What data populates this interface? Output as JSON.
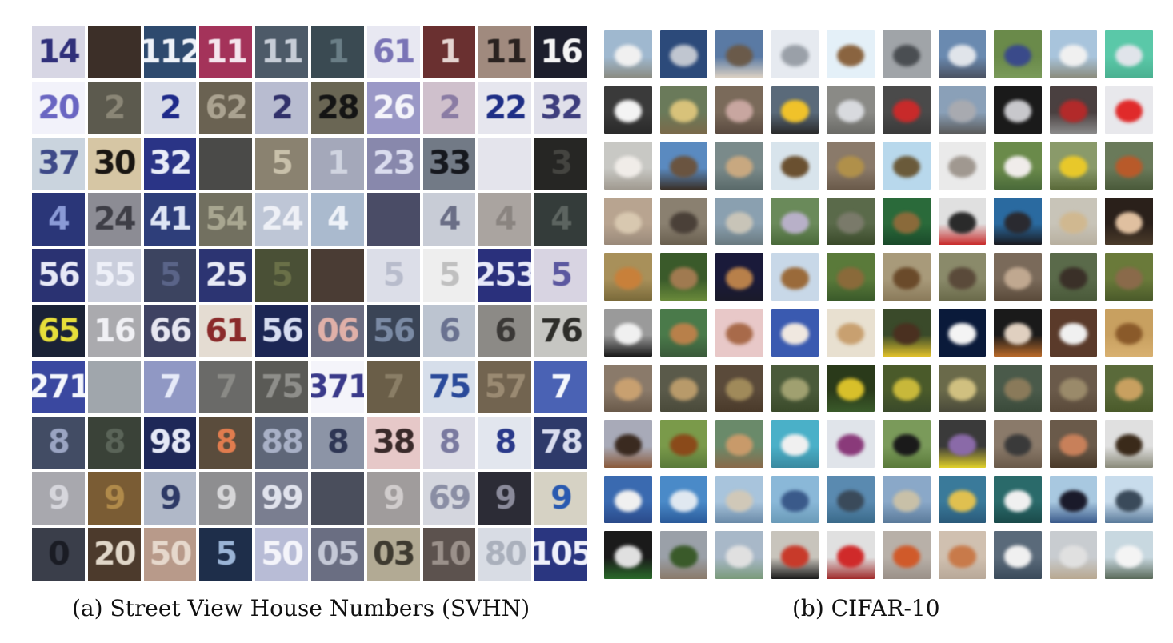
{
  "captions": {
    "a": "(a) Street View House Numbers (SVHN)",
    "b": "(b) CIFAR-10"
  },
  "svhn_tiles": [
    {
      "text": "14",
      "bg": "#d7d6e4",
      "fg": "#30307a"
    },
    {
      "text": "",
      "bg": "#3c2f28",
      "fg": "#5a4a40"
    },
    {
      "text": "112",
      "bg": "#2e4a6e",
      "fg": "#eef2f8"
    },
    {
      "text": "11",
      "bg": "#a4335a",
      "fg": "#f4e6ee"
    },
    {
      "text": "11",
      "bg": "#4d5a68",
      "fg": "#c6ccd6"
    },
    {
      "text": "1",
      "bg": "#3a4a52",
      "fg": "#6a7e86"
    },
    {
      "text": "61",
      "bg": "#e8e8f2",
      "fg": "#7a74b6"
    },
    {
      "text": "1",
      "bg": "#6a3030",
      "fg": "#e4d4d0"
    },
    {
      "text": "11",
      "bg": "#a08a7e",
      "fg": "#2a2220"
    },
    {
      "text": "16",
      "bg": "#1c1e2c",
      "fg": "#f4f4f4"
    },
    {
      "text": "20",
      "bg": "#f2f2fa",
      "fg": "#6a66c2"
    },
    {
      "text": "2",
      "bg": "#5c5a4e",
      "fg": "#8a8676"
    },
    {
      "text": "2",
      "bg": "#d8dce8",
      "fg": "#1e2a8a"
    },
    {
      "text": "62",
      "bg": "#6a6252",
      "fg": "#aaa290"
    },
    {
      "text": "2",
      "bg": "#b8bcd0",
      "fg": "#30306a"
    },
    {
      "text": "28",
      "bg": "#6a6654",
      "fg": "#141414"
    },
    {
      "text": "26",
      "bg": "#9a98c6",
      "fg": "#f4f4fa"
    },
    {
      "text": "2",
      "bg": "#cfc0cc",
      "fg": "#8a7ca4"
    },
    {
      "text": "22",
      "bg": "#e6e6ee",
      "fg": "#1e2e86"
    },
    {
      "text": "32",
      "bg": "#e0e0ea",
      "fg": "#3e3e7e"
    },
    {
      "text": "37",
      "bg": "#cad4de",
      "fg": "#3e4a88"
    },
    {
      "text": "30",
      "bg": "#d6c6a4",
      "fg": "#1a1612"
    },
    {
      "text": "32",
      "bg": "#2a3486",
      "fg": "#e8ecf8"
    },
    {
      "text": "",
      "bg": "#4a4a48",
      "fg": "#6e6c68"
    },
    {
      "text": "5",
      "bg": "#8a8270",
      "fg": "#c8c0aa"
    },
    {
      "text": "1",
      "bg": "#a4a8ba",
      "fg": "#d0d4e0"
    },
    {
      "text": "23",
      "bg": "#8888ac",
      "fg": "#dadcee"
    },
    {
      "text": "33",
      "bg": "#727a86",
      "fg": "#16181e"
    },
    {
      "text": "",
      "bg": "#e4e4ec",
      "fg": "#f4f4f8"
    },
    {
      "text": "3",
      "bg": "#262624",
      "fg": "#444440"
    },
    {
      "text": "4",
      "bg": "#2a3678",
      "fg": "#8a9ad6"
    },
    {
      "text": "24",
      "bg": "#8c8c94",
      "fg": "#3e3e46"
    },
    {
      "text": "41",
      "bg": "#2e3e7a",
      "fg": "#dde4f4"
    },
    {
      "text": "54",
      "bg": "#727060",
      "fg": "#a8a690"
    },
    {
      "text": "24",
      "bg": "#bec6d6",
      "fg": "#eef0f6"
    },
    {
      "text": "4",
      "bg": "#aabace",
      "fg": "#eef2f8"
    },
    {
      "text": "",
      "bg": "#4a4c66",
      "fg": "#6a6c84"
    },
    {
      "text": "4",
      "bg": "#c8ccd6",
      "fg": "#6a6e86"
    },
    {
      "text": "4",
      "bg": "#aaa4a0",
      "fg": "#8a8480"
    },
    {
      "text": "4",
      "bg": "#343c3a",
      "fg": "#5c6460"
    },
    {
      "text": "56",
      "bg": "#2a3272",
      "fg": "#e6e8f6"
    },
    {
      "text": "55",
      "bg": "#cacedc",
      "fg": "#eef0f8"
    },
    {
      "text": "5",
      "bg": "#3c4460",
      "fg": "#5a6488"
    },
    {
      "text": "25",
      "bg": "#2c3472",
      "fg": "#e8eaf6"
    },
    {
      "text": "5",
      "bg": "#4a5036",
      "fg": "#6a7048"
    },
    {
      "text": "",
      "bg": "#4a3c34",
      "fg": "#6a5a50"
    },
    {
      "text": "5",
      "bg": "#dcdee8",
      "fg": "#b8bccc"
    },
    {
      "text": "5",
      "bg": "#eeeeee",
      "fg": "#c0c0c0"
    },
    {
      "text": "253",
      "bg": "#2a307c",
      "fg": "#e6e8f8"
    },
    {
      "text": "5",
      "bg": "#d8d4e2",
      "fg": "#5c58a0"
    },
    {
      "text": "65",
      "bg": "#1a2236",
      "fg": "#e6de3a"
    },
    {
      "text": "16",
      "bg": "#aaaaae",
      "fg": "#f0f0f4"
    },
    {
      "text": "66",
      "bg": "#3e4262",
      "fg": "#e6e6f0"
    },
    {
      "text": "61",
      "bg": "#e4dcd2",
      "fg": "#8a2a2a"
    },
    {
      "text": "56",
      "bg": "#1c2654",
      "fg": "#d6dcf0"
    },
    {
      "text": "06",
      "bg": "#6a6c80",
      "fg": "#e0b0a8"
    },
    {
      "text": "56",
      "bg": "#3a4456",
      "fg": "#7a8aa4"
    },
    {
      "text": "6",
      "bg": "#bcc4d0",
      "fg": "#6a7290"
    },
    {
      "text": "6",
      "bg": "#8c8a86",
      "fg": "#3a3836"
    },
    {
      "text": "76",
      "bg": "#c6c6c2",
      "fg": "#2e2e2a"
    },
    {
      "text": "271",
      "bg": "#3a48a0",
      "fg": "#f4f6fc"
    },
    {
      "text": "",
      "bg": "#a0a6ac",
      "fg": "#c0c6cc"
    },
    {
      "text": "7",
      "bg": "#9098c4",
      "fg": "#e6eaf8"
    },
    {
      "text": "7",
      "bg": "#6a6a68",
      "fg": "#8a8a86"
    },
    {
      "text": "75",
      "bg": "#5a5a56",
      "fg": "#8e8e8a"
    },
    {
      "text": "371",
      "bg": "#f4f4fa",
      "fg": "#3a3a8a"
    },
    {
      "text": "7",
      "bg": "#6a5e48",
      "fg": "#8a7e66"
    },
    {
      "text": "75",
      "bg": "#d6deea",
      "fg": "#2a4a9a"
    },
    {
      "text": "57",
      "bg": "#726450",
      "fg": "#9a8a72"
    },
    {
      "text": "7",
      "bg": "#4a62b4",
      "fg": "#f4f6fc"
    },
    {
      "text": "8",
      "bg": "#424c64",
      "fg": "#9aa4c2"
    },
    {
      "text": "8",
      "bg": "#3a4238",
      "fg": "#5a6458"
    },
    {
      "text": "98",
      "bg": "#1e2858",
      "fg": "#e4e8f6"
    },
    {
      "text": "8",
      "bg": "#5a4c3c",
      "fg": "#e07c4e"
    },
    {
      "text": "88",
      "bg": "#5e6678",
      "fg": "#a8b0c6"
    },
    {
      "text": "8",
      "bg": "#8c94a6",
      "fg": "#2e3654"
    },
    {
      "text": "38",
      "bg": "#e6c8c8",
      "fg": "#3a2a2a"
    },
    {
      "text": "8",
      "bg": "#dcdce6",
      "fg": "#7a7aa0"
    },
    {
      "text": "8",
      "bg": "#e2e6ee",
      "fg": "#2a3a8a"
    },
    {
      "text": "78",
      "bg": "#2e3a6a",
      "fg": "#d8dcee"
    },
    {
      "text": "9",
      "bg": "#a8a8ae",
      "fg": "#d6d6dc"
    },
    {
      "text": "9",
      "bg": "#7a5c34",
      "fg": "#b08a4a"
    },
    {
      "text": "9",
      "bg": "#b0b8c8",
      "fg": "#2e3a66"
    },
    {
      "text": "9",
      "bg": "#8e8e90",
      "fg": "#d6d6d8"
    },
    {
      "text": "99",
      "bg": "#7a7e90",
      "fg": "#e0e2ec"
    },
    {
      "text": "",
      "bg": "#4a4e5c",
      "fg": "#6a6e7c"
    },
    {
      "text": "9",
      "bg": "#a09c9c",
      "fg": "#d0cccc"
    },
    {
      "text": "69",
      "bg": "#d4d6de",
      "fg": "#8a8ea4"
    },
    {
      "text": "9",
      "bg": "#2c2c36",
      "fg": "#8a8a9a"
    },
    {
      "text": "9",
      "bg": "#d6d2c4",
      "fg": "#2a5ab0"
    },
    {
      "text": "0",
      "bg": "#3a3e4a",
      "fg": "#1a1c24"
    },
    {
      "text": "20",
      "bg": "#4c3a2c",
      "fg": "#e0d6c8"
    },
    {
      "text": "50",
      "bg": "#b89a8a",
      "fg": "#e6d8cc"
    },
    {
      "text": "5",
      "bg": "#1e2e4a",
      "fg": "#9ab4d6"
    },
    {
      "text": "50",
      "bg": "#b8bcd6",
      "fg": "#f4f4fa"
    },
    {
      "text": "05",
      "bg": "#6a6e82",
      "fg": "#c4c8d6"
    },
    {
      "text": "03",
      "bg": "#b2aa94",
      "fg": "#3e3a30"
    },
    {
      "text": "10",
      "bg": "#5c524e",
      "fg": "#9a908a"
    },
    {
      "text": "80",
      "bg": "#d8dce4",
      "fg": "#aab0bc"
    },
    {
      "text": "105",
      "bg": "#2a3680",
      "fg": "#eef0fa"
    }
  ],
  "cifar_tiles": [
    {
      "class": "airplane",
      "bg": "#9fb8cf",
      "fg": "#f0f0f0",
      "g": "#8a8a80"
    },
    {
      "class": "airplane",
      "bg": "#2c4a7a",
      "fg": "#c0c6d0",
      "g": "#2c4a7a"
    },
    {
      "class": "airplane",
      "bg": "#5a7aa4",
      "fg": "#6a5a4a",
      "g": "#e0d4c4"
    },
    {
      "class": "airplane",
      "bg": "#e6eaf0",
      "fg": "#9aa0a8",
      "g": "#e6eaf0"
    },
    {
      "class": "airplane",
      "bg": "#e4f0f8",
      "fg": "#8a6440",
      "g": "#e4f0f8"
    },
    {
      "class": "airplane",
      "bg": "#a0a4a8",
      "fg": "#4a4e52",
      "g": "#a0a4a8"
    },
    {
      "class": "airplane",
      "bg": "#6a8ab0",
      "fg": "#e0e4ea",
      "g": "#4a5060"
    },
    {
      "class": "airplane",
      "bg": "#6a8a4a",
      "fg": "#3a4a8a",
      "g": "#7a9a5a"
    },
    {
      "class": "airplane",
      "bg": "#a8c4dc",
      "fg": "#f0f0f0",
      "g": "#8a8a7a"
    },
    {
      "class": "airplane",
      "bg": "#5ac8a8",
      "fg": "#e0e4ea",
      "g": "#4ab090"
    },
    {
      "class": "automobile",
      "bg": "#3a3a3a",
      "fg": "#f4f4f4",
      "g": "#2a2a2a"
    },
    {
      "class": "automobile",
      "bg": "#6a7a5a",
      "fg": "#d8c27a",
      "g": "#7a6a4a"
    },
    {
      "class": "automobile",
      "bg": "#7a6a5a",
      "fg": "#c8a6a0",
      "g": "#5a4a40"
    },
    {
      "class": "automobile",
      "bg": "#5a6a7a",
      "fg": "#f0c22a",
      "g": "#2a2a2a"
    },
    {
      "class": "automobile",
      "bg": "#8a8a86",
      "fg": "#d8dade",
      "g": "#6a6a66"
    },
    {
      "class": "automobile",
      "bg": "#4a4a4a",
      "fg": "#c82a2a",
      "g": "#3a3a3a"
    },
    {
      "class": "automobile",
      "bg": "#8aa0b8",
      "fg": "#a8aab0",
      "g": "#5a5a5a"
    },
    {
      "class": "automobile",
      "bg": "#1a1a1a",
      "fg": "#c8c8cc",
      "g": "#1a1a1a"
    },
    {
      "class": "automobile",
      "bg": "#4a4040",
      "fg": "#b22a2a",
      "g": "#8a8a8a"
    },
    {
      "class": "automobile",
      "bg": "#e8e8ec",
      "fg": "#e02a2a",
      "g": "#e8e8ec"
    },
    {
      "class": "bird",
      "bg": "#c8c8c4",
      "fg": "#f0ece8",
      "g": "#a09a90"
    },
    {
      "class": "bird",
      "bg": "#5a8ac0",
      "fg": "#6a5440",
      "g": "#3a3028"
    },
    {
      "class": "bird",
      "bg": "#7a8a8a",
      "fg": "#c8a880",
      "g": "#5a6a6a"
    },
    {
      "class": "bird",
      "bg": "#d8e4ec",
      "fg": "#6a5030",
      "g": "#d8e4ec"
    },
    {
      "class": "bird",
      "bg": "#8a7a6a",
      "fg": "#b0904a",
      "g": "#6a5a4a"
    },
    {
      "class": "bird",
      "bg": "#b8d8ec",
      "fg": "#6a5a3a",
      "g": "#b8d8ec"
    },
    {
      "class": "bird",
      "bg": "#eaeaea",
      "fg": "#a09890",
      "g": "#eaeaea"
    },
    {
      "class": "bird",
      "bg": "#6a8a4a",
      "fg": "#f0ecea",
      "g": "#4a6a3a"
    },
    {
      "class": "bird",
      "bg": "#8a9a6a",
      "fg": "#e8c82a",
      "g": "#5a6a3a"
    },
    {
      "class": "bird",
      "bg": "#6a7a5a",
      "fg": "#b85a2a",
      "g": "#4a5a3a"
    },
    {
      "class": "cat",
      "bg": "#b8a490",
      "fg": "#d8c8b0",
      "g": "#9a8a7a"
    },
    {
      "class": "cat",
      "bg": "#8a8070",
      "fg": "#4a4038",
      "g": "#6a6050"
    },
    {
      "class": "cat",
      "bg": "#8aa0b0",
      "fg": "#c8c4b8",
      "g": "#6a7a80"
    },
    {
      "class": "cat",
      "bg": "#6a8a5a",
      "fg": "#b8b0c8",
      "g": "#4a6a3a"
    },
    {
      "class": "cat",
      "bg": "#5a6a4a",
      "fg": "#7a7a6a",
      "g": "#3a4a2a"
    },
    {
      "class": "cat",
      "bg": "#2a6a3a",
      "fg": "#8a6a3a",
      "g": "#1a4a2a"
    },
    {
      "class": "cat",
      "bg": "#e0e0e0",
      "fg": "#2a2a2a",
      "g": "#c82a2a"
    },
    {
      "class": "cat",
      "bg": "#2a6aa0",
      "fg": "#2a2a30",
      "g": "#1a1a20"
    },
    {
      "class": "cat",
      "bg": "#c8c4b8",
      "fg": "#d0b890",
      "g": "#b8b0a0"
    },
    {
      "class": "cat",
      "bg": "#2a201a",
      "fg": "#e0c0a0",
      "g": "#4a3a2a"
    },
    {
      "class": "deer",
      "bg": "#a8905a",
      "fg": "#c8803a",
      "g": "#7a6a3a"
    },
    {
      "class": "deer",
      "bg": "#3a5a2a",
      "fg": "#a07a50",
      "g": "#6a8a3a"
    },
    {
      "class": "deer",
      "bg": "#1a1a3a",
      "fg": "#b8804a",
      "g": "#1a1a2a"
    },
    {
      "class": "deer",
      "bg": "#c8d8e8",
      "fg": "#9a6a3a",
      "g": "#c8d8e8"
    },
    {
      "class": "deer",
      "bg": "#5a7a3a",
      "fg": "#8a6a3a",
      "g": "#3a5a2a"
    },
    {
      "class": "deer",
      "bg": "#a89a7a",
      "fg": "#6a4a2a",
      "g": "#8a7a5a"
    },
    {
      "class": "deer",
      "bg": "#8a8a6a",
      "fg": "#5a4a3a",
      "g": "#6a6a4a"
    },
    {
      "class": "deer",
      "bg": "#7a6a5a",
      "fg": "#c0a890",
      "g": "#5a4a3a"
    },
    {
      "class": "deer",
      "bg": "#5a6a4a",
      "fg": "#3a3028",
      "g": "#4a5a3a"
    },
    {
      "class": "deer",
      "bg": "#6a7a3a",
      "fg": "#8a6a4a",
      "g": "#4a5a2a"
    },
    {
      "class": "dog",
      "bg": "#9a9a9a",
      "fg": "#f0f0f0",
      "g": "#1a1a1a"
    },
    {
      "class": "dog",
      "bg": "#4a7a4a",
      "fg": "#b8804a",
      "g": "#3a5a3a"
    },
    {
      "class": "dog",
      "bg": "#e8c8c8",
      "fg": "#a86a4a",
      "g": "#e8c8c8"
    },
    {
      "class": "dog",
      "bg": "#3a5ab0",
      "fg": "#f0e8e0",
      "g": "#3a5ab0"
    },
    {
      "class": "dog",
      "bg": "#e8e0d0",
      "fg": "#c8a070",
      "g": "#e8e0d0"
    },
    {
      "class": "dog",
      "bg": "#3a4a2a",
      "fg": "#4a3020",
      "g": "#e0c02a"
    },
    {
      "class": "dog",
      "bg": "#0a1a3a",
      "fg": "#f4f4f4",
      "g": "#0a1a3a"
    },
    {
      "class": "dog",
      "bg": "#1a1a1a",
      "fg": "#e0d0c0",
      "g": "#b86a2a"
    },
    {
      "class": "dog",
      "bg": "#5a3a2a",
      "fg": "#f0f0f0",
      "g": "#5a3a2a"
    },
    {
      "class": "dog",
      "bg": "#c8a060",
      "fg": "#8a5a2a",
      "g": "#d8b070"
    },
    {
      "class": "frog",
      "bg": "#8a7a6a",
      "fg": "#c8a070",
      "g": "#6a5a4a"
    },
    {
      "class": "frog",
      "bg": "#5a5a4a",
      "fg": "#b89a6a",
      "g": "#4a4a3a"
    },
    {
      "class": "frog",
      "bg": "#5a4a3a",
      "fg": "#a08a5a",
      "g": "#4a3a2a"
    },
    {
      "class": "frog",
      "bg": "#4a5a3a",
      "fg": "#a0a070",
      "g": "#3a4a2a"
    },
    {
      "class": "frog",
      "bg": "#2a3a1a",
      "fg": "#d8c02a",
      "g": "#3a5a2a"
    },
    {
      "class": "frog",
      "bg": "#4a5a2a",
      "fg": "#c8b83a",
      "g": "#3a4a2a"
    },
    {
      "class": "frog",
      "bg": "#6a6a4a",
      "fg": "#d0c080",
      "g": "#4a4a3a"
    },
    {
      "class": "frog",
      "bg": "#4a5a4a",
      "fg": "#8a7a5a",
      "g": "#3a4a3a"
    },
    {
      "class": "frog",
      "bg": "#6a5a4a",
      "fg": "#9a8a6a",
      "g": "#5a4a3a"
    },
    {
      "class": "frog",
      "bg": "#5a6a3a",
      "fg": "#c8a060",
      "g": "#4a5a2a"
    },
    {
      "class": "horse",
      "bg": "#a8aab8",
      "fg": "#3a2a20",
      "g": "#8a5a3a"
    },
    {
      "class": "horse",
      "bg": "#7a9a4a",
      "fg": "#8a4a1a",
      "g": "#5a7a3a"
    },
    {
      "class": "horse",
      "bg": "#6a8a6a",
      "fg": "#c89a6a",
      "g": "#8a6a4a"
    },
    {
      "class": "horse",
      "bg": "#4ab0c8",
      "fg": "#f0f0f0",
      "g": "#3a8aa0"
    },
    {
      "class": "horse",
      "bg": "#e0e4ea",
      "fg": "#8a3a7a",
      "g": "#e0e4ea"
    },
    {
      "class": "horse",
      "bg": "#7a9a5a",
      "fg": "#1a1a1a",
      "g": "#5a7a3a"
    },
    {
      "class": "horse",
      "bg": "#3a3a3a",
      "fg": "#8a6aa8",
      "g": "#e0d02a"
    },
    {
      "class": "horse",
      "bg": "#8a7a6a",
      "fg": "#3a3a3a",
      "g": "#6a5a4a"
    },
    {
      "class": "horse",
      "bg": "#6a5a4a",
      "fg": "#c8805a",
      "g": "#4a3a2a"
    },
    {
      "class": "horse",
      "bg": "#e0e0e0",
      "fg": "#3a2a1a",
      "g": "#8a8a7a"
    },
    {
      "class": "ship",
      "bg": "#3a6ab0",
      "fg": "#f0f0f0",
      "g": "#2a4a8a"
    },
    {
      "class": "ship",
      "bg": "#4a8ac8",
      "fg": "#e0e8f0",
      "g": "#2a5a9a"
    },
    {
      "class": "ship",
      "bg": "#a8c4dc",
      "fg": "#d0c8b8",
      "g": "#6a8aa8"
    },
    {
      "class": "ship",
      "bg": "#8ab8d8",
      "fg": "#3a5a8a",
      "g": "#6a9ab8"
    },
    {
      "class": "ship",
      "bg": "#5a8ab0",
      "fg": "#3a4a5a",
      "g": "#3a6a8a"
    },
    {
      "class": "ship",
      "bg": "#8aa8c8",
      "fg": "#c8c0a8",
      "g": "#5a7a9a"
    },
    {
      "class": "ship",
      "bg": "#3a7a9a",
      "fg": "#e0c050",
      "g": "#2a5a7a"
    },
    {
      "class": "ship",
      "bg": "#2a6a6a",
      "fg": "#f0f0f0",
      "g": "#1a4a4a"
    },
    {
      "class": "ship",
      "bg": "#a8c8e0",
      "fg": "#1a1a2a",
      "g": "#3a5a8a"
    },
    {
      "class": "ship",
      "bg": "#c8dcec",
      "fg": "#3a4a5a",
      "g": "#5a7a9a"
    },
    {
      "class": "truck",
      "bg": "#1a1a1a",
      "fg": "#e0e0e0",
      "g": "#2a6a2a"
    },
    {
      "class": "truck",
      "bg": "#9aa0a8",
      "fg": "#3a5a2a",
      "g": "#8a7a6a"
    },
    {
      "class": "truck",
      "bg": "#a8b8c8",
      "fg": "#e0e0e0",
      "g": "#7a9a7a"
    },
    {
      "class": "truck",
      "bg": "#c8c4bc",
      "fg": "#c83a2a",
      "g": "#1a1a1a"
    },
    {
      "class": "truck",
      "bg": "#e0e0e0",
      "fg": "#d02a2a",
      "g": "#a02a2a"
    },
    {
      "class": "truck",
      "bg": "#b8b0a8",
      "fg": "#d05a2a",
      "g": "#9a9088"
    },
    {
      "class": "truck",
      "bg": "#d0c0b0",
      "fg": "#c87a4a",
      "g": "#b8a898"
    },
    {
      "class": "truck",
      "bg": "#5a6a7a",
      "fg": "#f0f0f0",
      "g": "#3a4a5a"
    },
    {
      "class": "truck",
      "bg": "#c8ccd0",
      "fg": "#e0e0e0",
      "g": "#b8a890"
    },
    {
      "class": "truck",
      "bg": "#c8d8e0",
      "fg": "#f4f4f4",
      "g": "#5a6a5a"
    }
  ]
}
